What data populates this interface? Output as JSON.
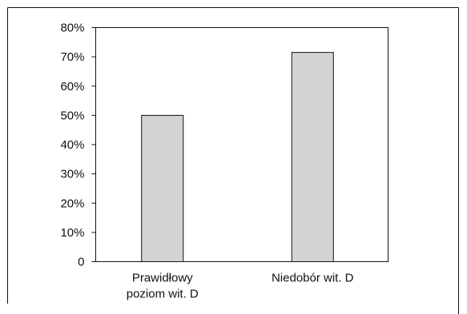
{
  "chart_data": {
    "type": "bar",
    "categories": [
      [
        "Prawidłowy",
        "poziom wit. D"
      ],
      [
        "Niedobór wit. D"
      ]
    ],
    "values": [
      50,
      71.5
    ],
    "ylim": [
      0,
      80
    ],
    "yticks": [
      "0",
      "10%",
      "20%",
      "30%",
      "40%",
      "50%",
      "60%",
      "70%",
      "80%"
    ],
    "ytick_values": [
      0,
      10,
      20,
      30,
      40,
      50,
      60,
      70,
      80
    ],
    "grid": false,
    "bar_color": "#d3d3d3",
    "bar_edge_color": "#111111"
  }
}
